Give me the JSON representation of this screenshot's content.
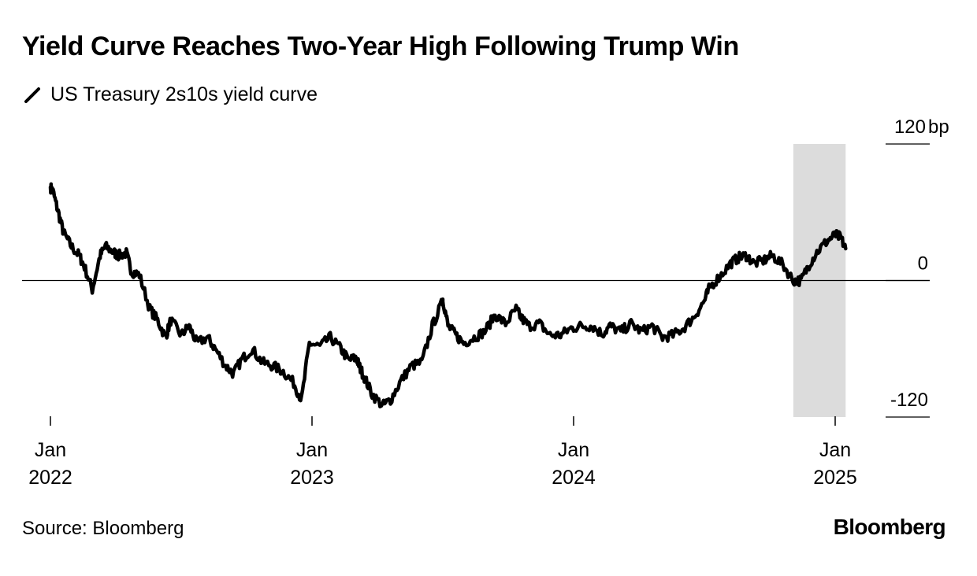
{
  "title": "Yield Curve Reaches Two-Year High Following Trump Win",
  "legend": {
    "label": "US Treasury 2s10s yield curve",
    "color": "#000000"
  },
  "source": "Source: Bloomberg",
  "brand": "Bloomberg",
  "chart_data": {
    "type": "line",
    "title": "Yield Curve Reaches Two-Year High Following Trump Win",
    "xlabel": "",
    "ylabel": "bp",
    "y_unit": "bp",
    "ylim": [
      -120,
      120
    ],
    "grid": false,
    "zero_line": true,
    "y_ticks": [
      {
        "value": 120,
        "label": "120"
      },
      {
        "value": 0,
        "label": "0"
      },
      {
        "value": -120,
        "label": "-120"
      }
    ],
    "x_ticks": [
      {
        "value": 2022.0,
        "month": "Jan",
        "year": "2022"
      },
      {
        "value": 2023.0,
        "month": "Jan",
        "year": "2023"
      },
      {
        "value": 2024.0,
        "month": "Jan",
        "year": "2024"
      },
      {
        "value": 2025.0,
        "month": "Jan",
        "year": "2025"
      }
    ],
    "highlight": {
      "start": 2024.84,
      "end": 2025.04,
      "color": "#dcdcdc"
    },
    "series": [
      {
        "name": "US Treasury 2s10s yield curve",
        "color": "#000000",
        "x": [
          2022.0,
          2022.01,
          2022.03,
          2022.05,
          2022.08,
          2022.11,
          2022.13,
          2022.16,
          2022.19,
          2022.21,
          2022.24,
          2022.26,
          2022.29,
          2022.31,
          2022.34,
          2022.38,
          2022.41,
          2022.44,
          2022.46,
          2022.5,
          2022.53,
          2022.56,
          2022.6,
          2022.63,
          2022.67,
          2022.7,
          2022.73,
          2022.77,
          2022.81,
          2022.85,
          2022.89,
          2022.93,
          2022.96,
          2022.99,
          2023.03,
          2023.07,
          2023.11,
          2023.14,
          2023.17,
          2023.18,
          2023.2,
          2023.23,
          2023.27,
          2023.3,
          2023.34,
          2023.38,
          2023.42,
          2023.46,
          2023.5,
          2023.5,
          2023.52,
          2023.55,
          2023.58,
          2023.62,
          2023.66,
          2023.7,
          2023.74,
          2023.78,
          2023.8,
          2023.83,
          2023.87,
          2023.91,
          2023.95,
          2023.99,
          2024.03,
          2024.07,
          2024.11,
          2024.14,
          2024.18,
          2024.22,
          2024.26,
          2024.3,
          2024.34,
          2024.38,
          2024.42,
          2024.46,
          2024.5,
          2024.52,
          2024.56,
          2024.6,
          2024.63,
          2024.66,
          2024.69,
          2024.73,
          2024.76,
          2024.8,
          2024.84,
          2024.87,
          2024.9,
          2024.93,
          2024.97,
          2025.0,
          2025.02,
          2025.04
        ],
        "y": [
          82,
          78,
          60,
          42,
          30,
          22,
          12,
          -8,
          22,
          30,
          25,
          22,
          24,
          8,
          5,
          -25,
          -35,
          -50,
          -35,
          -48,
          -40,
          -55,
          -50,
          -60,
          -75,
          -82,
          -70,
          -60,
          -72,
          -75,
          -80,
          -90,
          -105,
          -55,
          -58,
          -50,
          -60,
          -70,
          -68,
          -75,
          -85,
          -100,
          -110,
          -105,
          -88,
          -75,
          -72,
          -40,
          -18,
          -16,
          -40,
          -48,
          -55,
          -50,
          -45,
          -30,
          -38,
          -25,
          -33,
          -40,
          -38,
          -48,
          -48,
          -42,
          -40,
          -40,
          -47,
          -40,
          -45,
          -38,
          -45,
          -40,
          -50,
          -48,
          -42,
          -32,
          -18,
          -6,
          4,
          15,
          20,
          22,
          15,
          18,
          22,
          14,
          0,
          0,
          14,
          25,
          35,
          40,
          38,
          28
        ]
      }
    ]
  }
}
